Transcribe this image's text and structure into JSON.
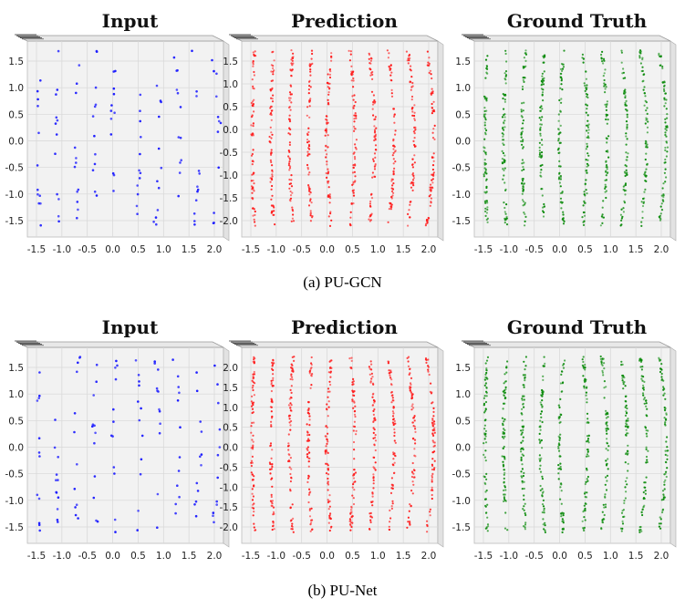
{
  "figure": {
    "rows": [
      {
        "caption": "(a)  PU-GCN",
        "panels": [
          {
            "title": "Input",
            "color": "#1a1aff",
            "density": "sparse",
            "x_ticks": [
              "-1.5",
              "-1.0",
              "-0.5",
              "0.0",
              "0.5",
              "1.0",
              "1.5",
              "2.0"
            ],
            "y_ticks": [
              "1.5",
              "1.0",
              "0.5",
              "0.0",
              "-0.5",
              "-1.0",
              "-1.5"
            ]
          },
          {
            "title": "Prediction",
            "color": "#ff1a1a",
            "density": "dense",
            "x_ticks": [
              "-1.5",
              "-1.0",
              "-0.5",
              "0.0",
              "0.5",
              "1.0",
              "1.5",
              "2.0"
            ],
            "y_ticks": [
              "1.5",
              "1.0",
              "0.5",
              "0.0",
              "-0.5",
              "-1.0",
              "-1.5",
              "-2.0"
            ]
          },
          {
            "title": "Ground Truth",
            "color": "#0a8a0a",
            "density": "dense",
            "x_ticks": [
              "-1.5",
              "-1.0",
              "-0.5",
              "0.0",
              "0.5",
              "1.0",
              "1.5",
              "2.0"
            ],
            "y_ticks": [
              "1.5",
              "1.0",
              "0.5",
              "0.0",
              "-0.5",
              "-1.0",
              "-1.5"
            ]
          }
        ]
      },
      {
        "caption": "(b)  PU-Net",
        "panels": [
          {
            "title": "Input",
            "color": "#1a1aff",
            "density": "sparse",
            "x_ticks": [
              "-1.5",
              "-1.0",
              "-0.5",
              "0.0",
              "0.5",
              "1.0",
              "1.5",
              "2.0"
            ],
            "y_ticks": [
              "1.5",
              "1.0",
              "0.5",
              "0.0",
              "-0.5",
              "-1.0",
              "-1.5"
            ]
          },
          {
            "title": "Prediction",
            "color": "#ff1a1a",
            "density": "dense",
            "x_ticks": [
              "-1.5",
              "-1.0",
              "-0.5",
              "0.0",
              "0.5",
              "1.0",
              "1.5",
              "2.0"
            ],
            "y_ticks": [
              "2.0",
              "1.5",
              "1.0",
              "0.5",
              "0.0",
              "-0.5",
              "-1.0",
              "-1.5",
              "-2.0"
            ]
          },
          {
            "title": "Ground Truth",
            "color": "#0a8a0a",
            "density": "dense",
            "x_ticks": [
              "-1.5",
              "-1.0",
              "-0.5",
              "0.0",
              "0.5",
              "1.0",
              "1.5",
              "2.0"
            ],
            "y_ticks": [
              "1.5",
              "1.0",
              "0.5",
              "0.0",
              "-0.5",
              "-1.0",
              "-1.5"
            ]
          }
        ]
      }
    ]
  },
  "chart_data": [
    {
      "type": "scatter",
      "title": "Input",
      "xlim": [
        -1.5,
        2.0
      ],
      "ylim": [
        -1.9,
        1.9
      ],
      "series": [
        {
          "values": "point cloud (sparse, ~10 vertical curved strips)"
        }
      ]
    },
    {
      "type": "scatter",
      "title": "Prediction",
      "xlim": [
        -1.5,
        2.0
      ],
      "ylim": [
        -2.0,
        1.9
      ],
      "series": [
        {
          "values": "point cloud (dense upsampled, ~10 vertical curved strips)"
        }
      ]
    },
    {
      "type": "scatter",
      "title": "Ground Truth",
      "xlim": [
        -1.5,
        2.0
      ],
      "ylim": [
        -1.9,
        1.9
      ],
      "series": [
        {
          "values": "point cloud (dense, ~10 vertical curved strips)"
        }
      ]
    },
    {
      "type": "scatter",
      "title": "Input",
      "xlim": [
        -1.5,
        2.0
      ],
      "ylim": [
        -1.9,
        1.9
      ],
      "series": [
        {
          "values": "point cloud (sparse)"
        }
      ]
    },
    {
      "type": "scatter",
      "title": "Prediction",
      "xlim": [
        -1.5,
        2.0
      ],
      "ylim": [
        -2.0,
        2.0
      ],
      "series": [
        {
          "values": "point cloud (dense upsampled, noisier)"
        }
      ]
    },
    {
      "type": "scatter",
      "title": "Ground Truth",
      "xlim": [
        -1.5,
        2.0
      ],
      "ylim": [
        -1.9,
        1.9
      ],
      "series": [
        {
          "values": "point cloud (dense)"
        }
      ]
    }
  ]
}
